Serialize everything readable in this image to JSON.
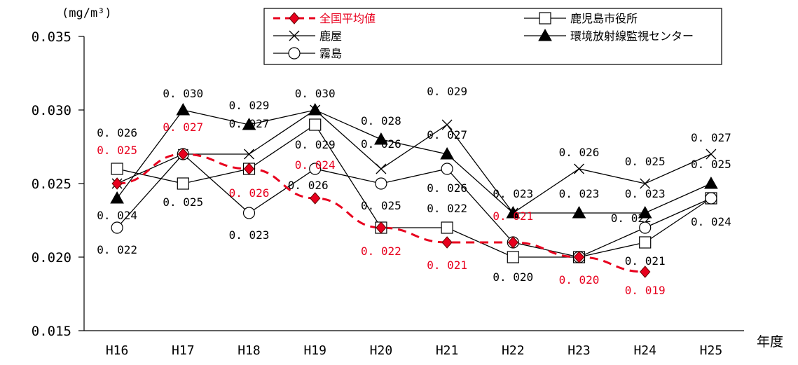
{
  "chart_data": {
    "type": "line",
    "title": "",
    "ylabel": "(mg/m³)",
    "xlabel": "年度",
    "ylim": [
      0.015,
      0.035
    ],
    "yticks": [
      "0.015",
      "0.020",
      "0.025",
      "0.030",
      "0.035"
    ],
    "categories": [
      "H16",
      "H17",
      "H18",
      "H19",
      "H20",
      "H21",
      "H22",
      "H23",
      "H24",
      "H25"
    ],
    "grid": false,
    "legend_position": "top-right",
    "series": [
      {
        "name": "全国平均値",
        "marker": "diamond",
        "color": "#e8001e",
        "dashed": true,
        "values": [
          0.025,
          0.027,
          0.026,
          0.024,
          0.022,
          0.021,
          0.021,
          0.02,
          0.019,
          null
        ],
        "labels": [
          "0.025",
          "0.027",
          "0.026",
          "0.024",
          "0.022",
          "0.021",
          "0.021",
          "0.020",
          "0.019",
          null
        ]
      },
      {
        "name": "鹿児島市役所",
        "marker": "square",
        "color": "#000000",
        "values": [
          0.026,
          0.025,
          0.026,
          0.029,
          0.022,
          0.022,
          0.02,
          0.02,
          0.021,
          0.024
        ],
        "labels": [
          "0.026",
          "0.025",
          null,
          "0.029",
          null,
          "0.022",
          "0.020",
          null,
          "0.021",
          null
        ]
      },
      {
        "name": "鹿屋",
        "marker": "x",
        "color": "#000000",
        "values": [
          0.025,
          0.027,
          0.027,
          0.03,
          0.026,
          0.029,
          0.023,
          0.026,
          0.025,
          0.027
        ],
        "labels": [
          null,
          null,
          "0.027",
          null,
          "0.026",
          "0.029",
          null,
          "0.026",
          "0.025",
          "0.027"
        ]
      },
      {
        "name": "環境放射線監視センター",
        "marker": "triangle",
        "color": "#000000",
        "values": [
          0.024,
          0.03,
          0.029,
          0.03,
          0.028,
          0.027,
          0.023,
          0.023,
          0.023,
          0.025
        ],
        "labels": [
          "0.024",
          "0.030",
          "0.029",
          "0.030",
          "0.028",
          "0.027",
          "0.023",
          "0.023",
          "0.023",
          "0.025"
        ]
      },
      {
        "name": "霧島",
        "marker": "circle",
        "color": "#000000",
        "values": [
          0.022,
          0.027,
          0.023,
          0.026,
          0.025,
          0.026,
          0.021,
          0.02,
          0.022,
          0.024
        ],
        "labels": [
          "0.022",
          null,
          "0.023",
          "0.026",
          "0.025",
          "0.026",
          null,
          null,
          "0.022",
          "0.024"
        ]
      }
    ]
  }
}
